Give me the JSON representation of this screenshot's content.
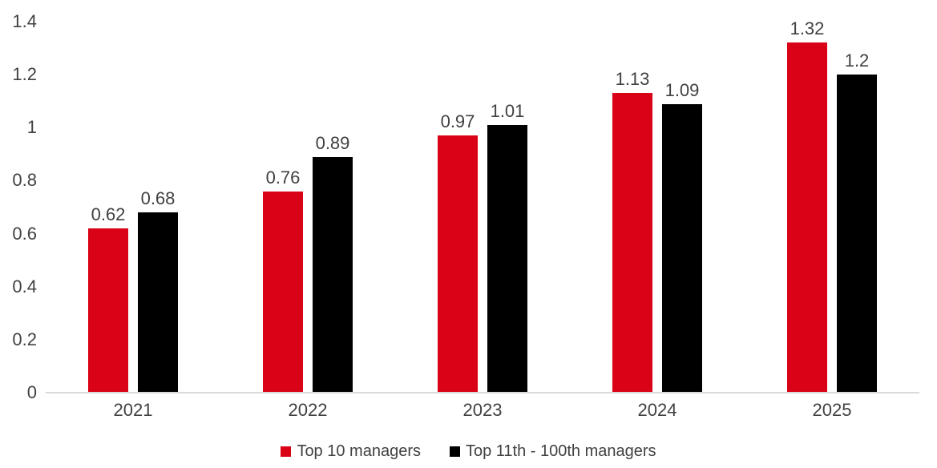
{
  "chart_data": {
    "type": "bar",
    "title": "",
    "xlabel": "",
    "ylabel": "",
    "categories": [
      "2021",
      "2022",
      "2023",
      "2024",
      "2025"
    ],
    "series": [
      {
        "name": "Top 10 managers",
        "color": "#d90216",
        "values": [
          0.62,
          0.76,
          0.97,
          1.13,
          1.32
        ],
        "labels": [
          "0.62",
          "0.76",
          "0.97",
          "1.13",
          "1.32"
        ]
      },
      {
        "name": "Top 11th - 100th managers",
        "color": "#000000",
        "values": [
          0.68,
          0.89,
          1.01,
          1.09,
          1.2
        ],
        "labels": [
          "0.68",
          "0.89",
          "1.01",
          "1.09",
          "1.2"
        ]
      }
    ],
    "ylim": [
      0,
      1.4
    ],
    "yticks": [
      0,
      0.2,
      0.4,
      0.6,
      0.8,
      1,
      1.2,
      1.4
    ],
    "ytick_labels": [
      "0",
      "0.2",
      "0.4",
      "0.6",
      "0.8",
      "1",
      "1.2",
      "1.4"
    ],
    "grid": false,
    "legend_position": "bottom",
    "data_labels": true
  },
  "colors": {
    "background": "#ffffff",
    "axis_line": "#d9d9d9",
    "text": "#414141"
  }
}
